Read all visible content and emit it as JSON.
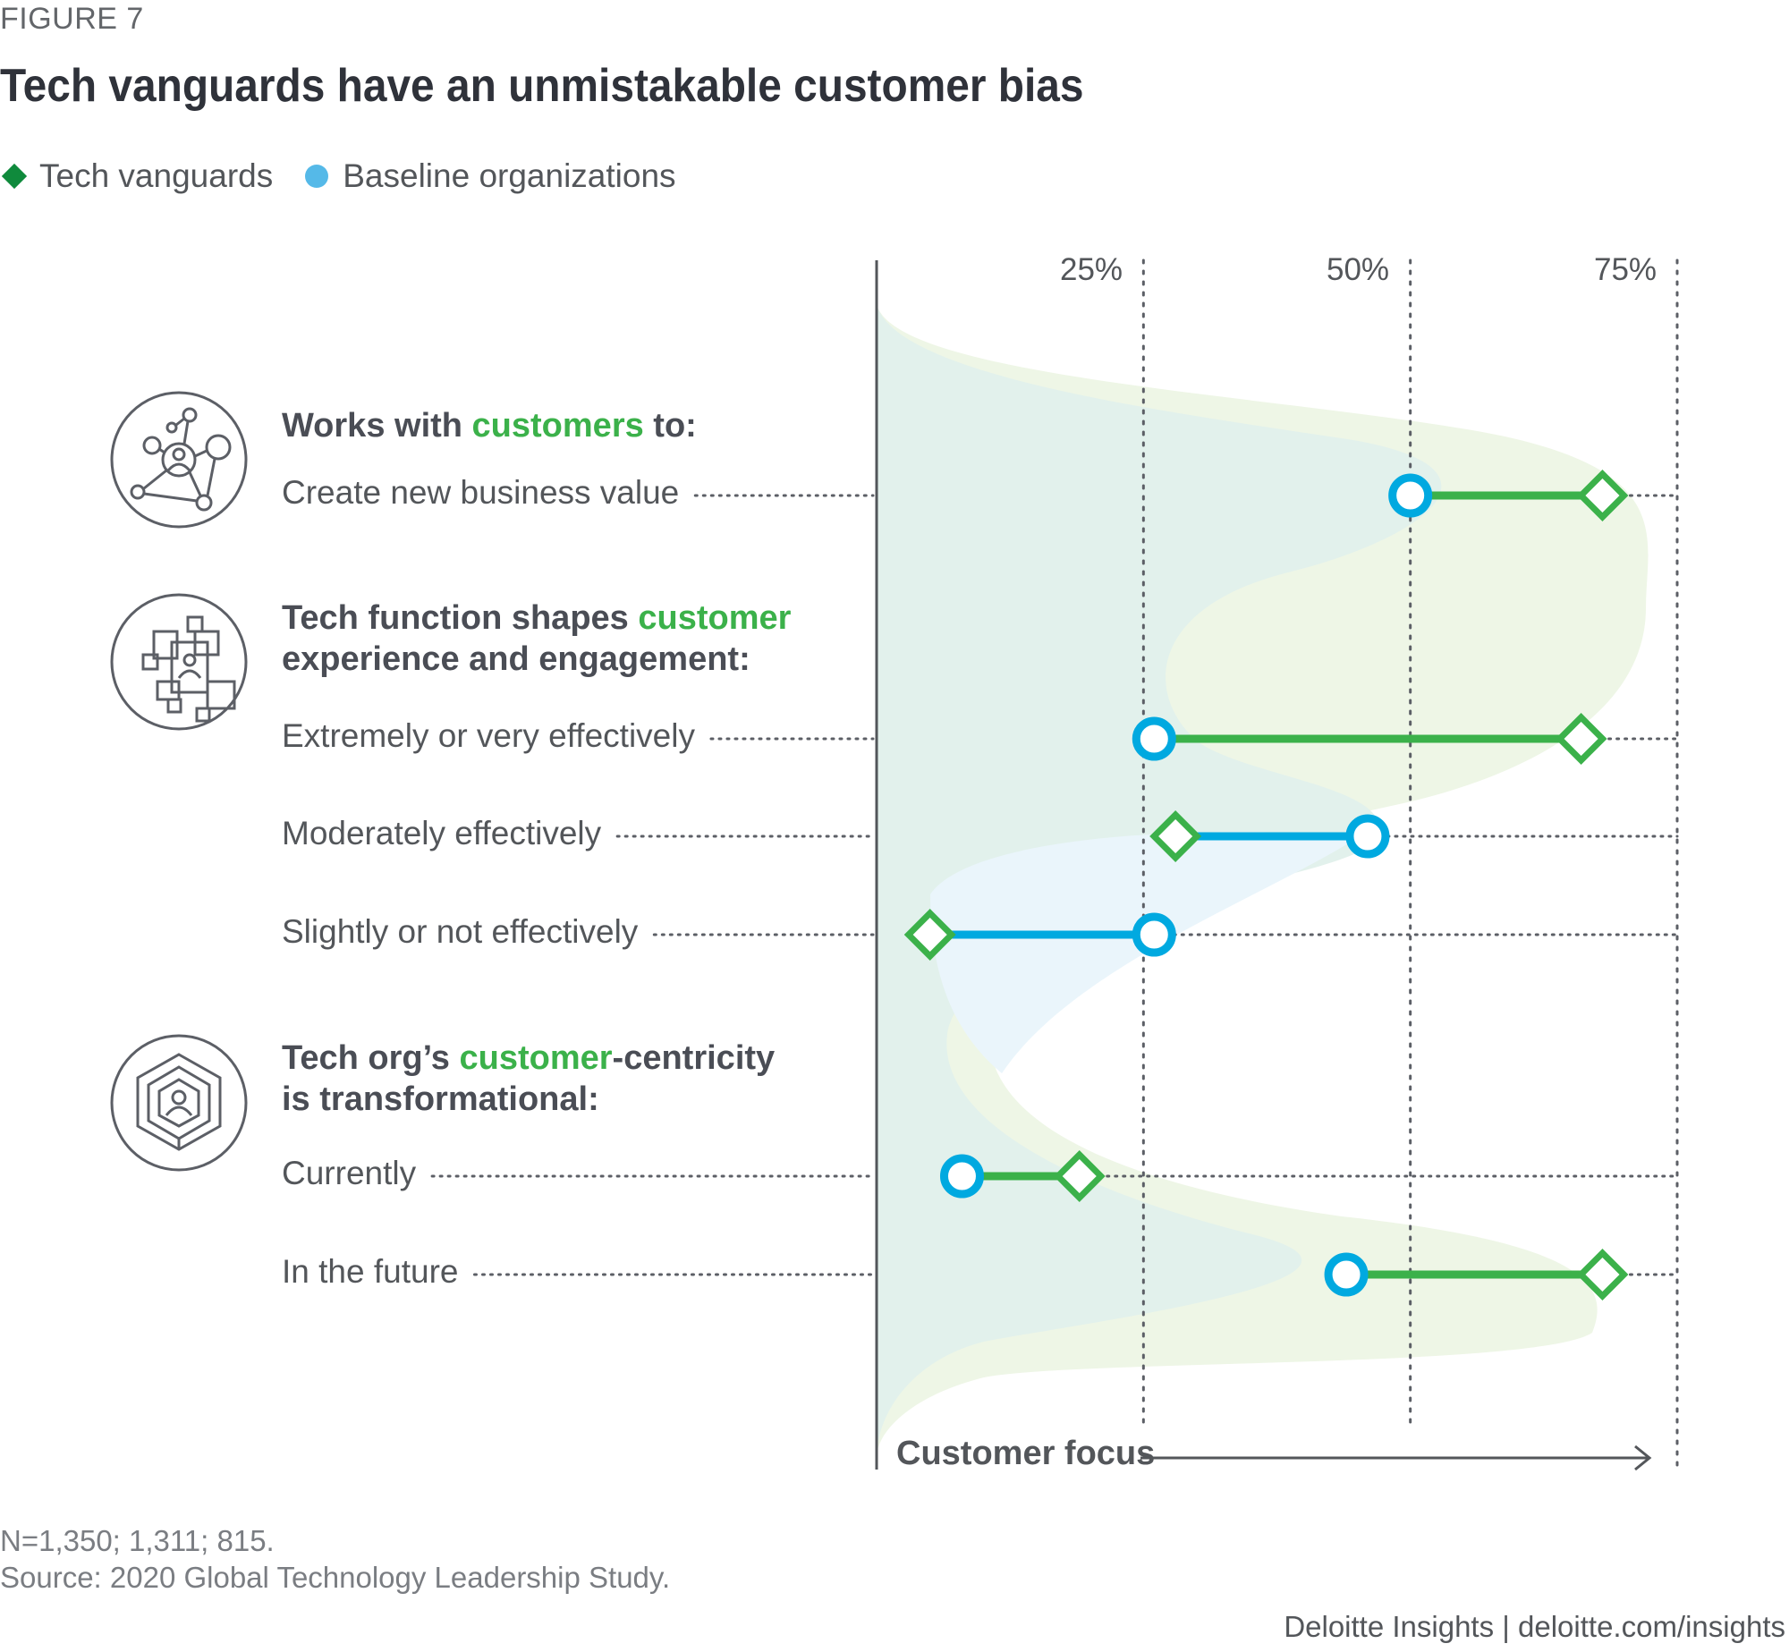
{
  "figure_label": "FIGURE 7",
  "title": "Tech vanguards have an unmistakable customer bias",
  "legend": [
    {
      "name": "Tech vanguards",
      "marker": "diamond",
      "color": "#0f8a3c"
    },
    {
      "name": "Baseline organizations",
      "marker": "circle",
      "color": "#55b9e8"
    }
  ],
  "groups": [
    {
      "icon": "network-people-icon",
      "heading_pre": "Works with ",
      "heading_hl": "customers",
      "heading_post": " to:",
      "heading_line2": ""
    },
    {
      "icon": "puzzle-person-icon",
      "heading_pre": "Tech function shapes ",
      "heading_hl": "customer",
      "heading_post": "",
      "heading_line2": "experience and engagement:"
    },
    {
      "icon": "hexagon-person-icon",
      "heading_pre": "Tech org’s ",
      "heading_hl": "customer",
      "heading_post": "-centricity",
      "heading_line2": "is transformational:"
    }
  ],
  "chart_data": {
    "type": "dumbbell",
    "title": "Tech vanguards have an unmistakable customer bias",
    "xlabel": "Customer focus",
    "xlim": [
      0,
      75
    ],
    "x_ticks": [
      25,
      50,
      75
    ],
    "x_tick_labels": [
      "25%",
      "50%",
      "75%"
    ],
    "grid": true,
    "legend_position": "top-left",
    "categories": [
      "Create new business value",
      "Extremely or very effectively",
      "Moderately effectively",
      "Slightly or not effectively",
      "Currently",
      "In the future"
    ],
    "category_groups": [
      0,
      1,
      1,
      1,
      2,
      2
    ],
    "series": [
      {
        "name": "Tech vanguards",
        "marker": "diamond",
        "color": "#3bb14a",
        "values": [
          68,
          66,
          28,
          5,
          19,
          68
        ]
      },
      {
        "name": "Baseline organizations",
        "marker": "circle",
        "color": "#00a9e0",
        "values": [
          50,
          26,
          46,
          26,
          8,
          44
        ]
      }
    ]
  },
  "footnotes": {
    "n": "N=1,350; 1,311; 815.",
    "source": "Source: 2020 Global Technology Leadership Study."
  },
  "credit": "Deloitte Insights | deloitte.com/insights",
  "colors": {
    "vanguard": "#3bb14a",
    "baseline": "#00a9e0",
    "area_green": "#eef6e6",
    "area_teal": "#e2f1ec",
    "area_blue": "#eaf5fb",
    "text": "#53565a"
  }
}
